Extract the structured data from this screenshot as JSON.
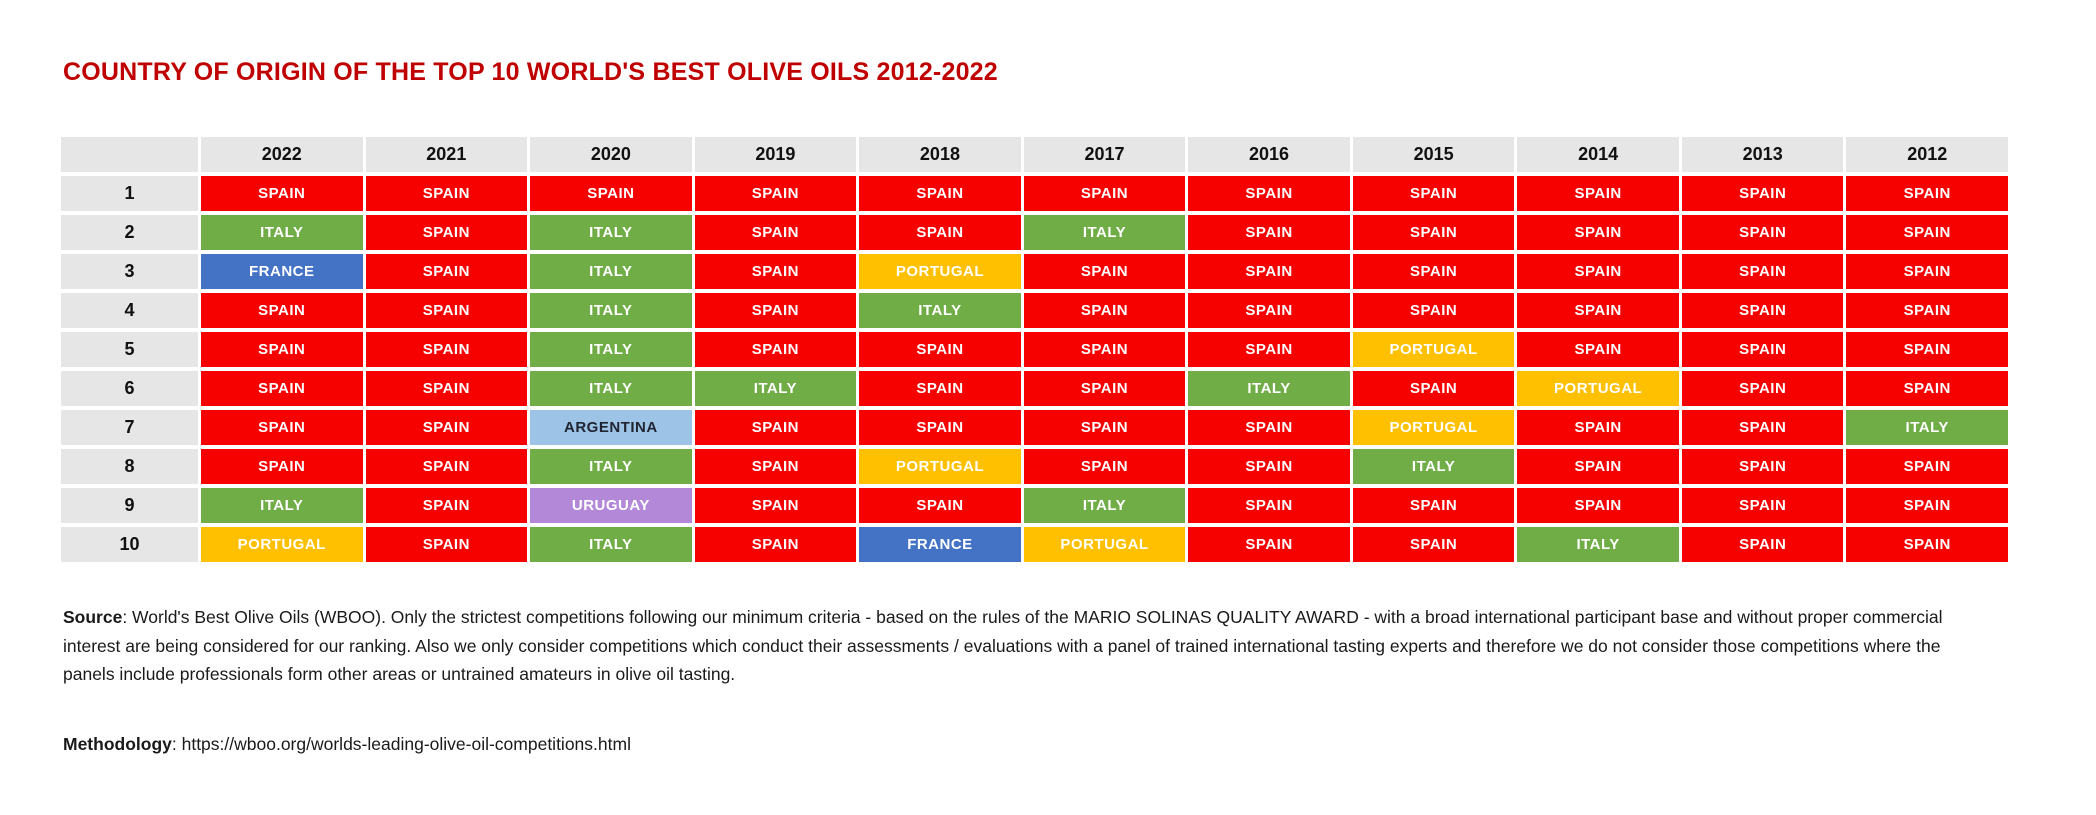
{
  "chart_data": {
    "type": "table",
    "title": "COUNTRY OF ORIGIN OF THE TOP 10 WORLD'S BEST OLIVE OILS 2012-2022",
    "title_color": "#C00000",
    "header_bg": "#E7E6E6",
    "rank_header": "",
    "year_headers": [
      "2022",
      "2021",
      "2020",
      "2019",
      "2018",
      "2017",
      "2016",
      "2015",
      "2014",
      "2013",
      "2012"
    ],
    "ranks": [
      "1",
      "2",
      "3",
      "4",
      "5",
      "6",
      "7",
      "8",
      "9",
      "10"
    ],
    "rows": [
      [
        "SPAIN",
        "SPAIN",
        "SPAIN",
        "SPAIN",
        "SPAIN",
        "SPAIN",
        "SPAIN",
        "SPAIN",
        "SPAIN",
        "SPAIN",
        "SPAIN"
      ],
      [
        "ITALY",
        "SPAIN",
        "ITALY",
        "SPAIN",
        "SPAIN",
        "ITALY",
        "SPAIN",
        "SPAIN",
        "SPAIN",
        "SPAIN",
        "SPAIN"
      ],
      [
        "FRANCE",
        "SPAIN",
        "ITALY",
        "SPAIN",
        "PORTUGAL",
        "SPAIN",
        "SPAIN",
        "SPAIN",
        "SPAIN",
        "SPAIN",
        "SPAIN"
      ],
      [
        "SPAIN",
        "SPAIN",
        "ITALY",
        "SPAIN",
        "ITALY",
        "SPAIN",
        "SPAIN",
        "SPAIN",
        "SPAIN",
        "SPAIN",
        "SPAIN"
      ],
      [
        "SPAIN",
        "SPAIN",
        "ITALY",
        "SPAIN",
        "SPAIN",
        "SPAIN",
        "SPAIN",
        "PORTUGAL",
        "SPAIN",
        "SPAIN",
        "SPAIN"
      ],
      [
        "SPAIN",
        "SPAIN",
        "ITALY",
        "ITALY",
        "SPAIN",
        "SPAIN",
        "ITALY",
        "SPAIN",
        "PORTUGAL",
        "SPAIN",
        "SPAIN"
      ],
      [
        "SPAIN",
        "SPAIN",
        "ARGENTINA",
        "SPAIN",
        "SPAIN",
        "SPAIN",
        "SPAIN",
        "PORTUGAL",
        "SPAIN",
        "SPAIN",
        "ITALY"
      ],
      [
        "SPAIN",
        "SPAIN",
        "ITALY",
        "SPAIN",
        "PORTUGAL",
        "SPAIN",
        "SPAIN",
        "ITALY",
        "SPAIN",
        "SPAIN",
        "SPAIN"
      ],
      [
        "ITALY",
        "SPAIN",
        "URUGUAY",
        "SPAIN",
        "SPAIN",
        "ITALY",
        "SPAIN",
        "SPAIN",
        "SPAIN",
        "SPAIN",
        "SPAIN"
      ],
      [
        "PORTUGAL",
        "SPAIN",
        "ITALY",
        "SPAIN",
        "FRANCE",
        "PORTUGAL",
        "SPAIN",
        "SPAIN",
        "ITALY",
        "SPAIN",
        "SPAIN"
      ]
    ],
    "country_colors": {
      "SPAIN": {
        "bg": "#F60000",
        "fg": "#FFFFFF"
      },
      "ITALY": {
        "bg": "#70AD47",
        "fg": "#FFFFFF"
      },
      "FRANCE": {
        "bg": "#4472C4",
        "fg": "#FFFFFF"
      },
      "PORTUGAL": {
        "bg": "#FFC000",
        "fg": "#FFFFFF"
      },
      "ARGENTINA": {
        "bg": "#9DC3E6",
        "fg": "#1F2430"
      },
      "URUGUAY": {
        "bg": "#B488D8",
        "fg": "#FFFFFF"
      }
    },
    "legend_position": "none",
    "grid": false
  },
  "footer": {
    "source_label": "Source",
    "source_text": ": World's Best Olive Oils (WBOO). Only the strictest competitions following our minimum criteria - based on the rules of the MARIO SOLINAS QUALITY AWARD - with a broad international participant base and without proper commercial interest are being considered for our ranking. Also we only consider competitions which conduct their assessments / evaluations with a panel of trained international tasting experts and therefore we do not consider those competitions where the panels include professionals form other areas or untrained amateurs in olive oil tasting.",
    "methodology_label": "Methodology",
    "methodology_text": ": https://wboo.org/worlds-leading-olive-oil-competitions.html"
  }
}
